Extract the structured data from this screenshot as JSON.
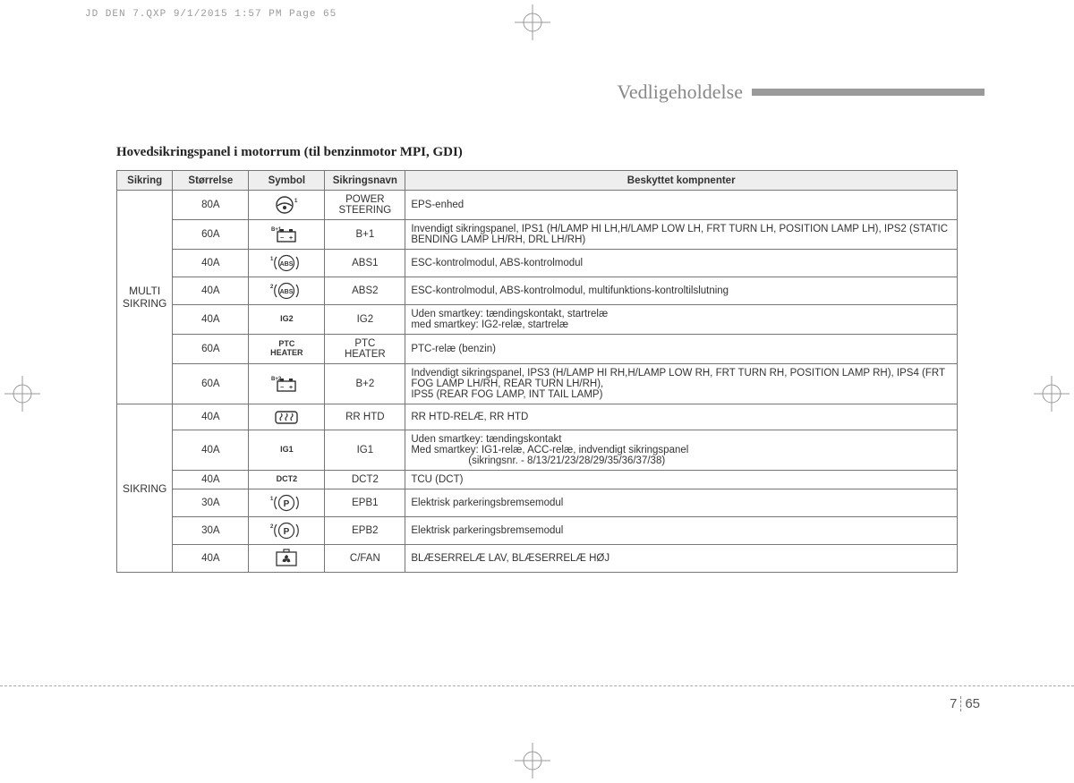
{
  "print_header": "JD DEN 7.QXP  9/1/2015  1:57 PM  Page 65",
  "section_title": "Vedligeholdelse",
  "table_title": "Hovedsikringspanel i motorrum (til benzinmotor MPI, GDI)",
  "columns": {
    "c0": "Sikring",
    "c1": "Størrelse",
    "c2": "Symbol",
    "c3": "Sikringsnavn",
    "c4": "Beskyttet kompnenter"
  },
  "groups": [
    {
      "label": "MULTI\nSIKRING",
      "rows": 7
    },
    {
      "label": "SIKRING",
      "rows": 6
    }
  ],
  "rows": [
    {
      "size": "80A",
      "symbol": "steering",
      "sym_text": "",
      "sup": "1",
      "name": "POWER\nSTEERING",
      "desc": "EPS-enhed"
    },
    {
      "size": "60A",
      "symbol": "battery",
      "sym_text": "",
      "sup": "B+1",
      "name": "B+1",
      "desc": "Invendigt sikringspanel, IPS1 (H/LAMP HI LH,H/LAMP LOW LH, FRT TURN LH, POSITION LAMP LH), IPS2 (STATIC BENDING LAMP LH/RH, DRL LH/RH)"
    },
    {
      "size": "40A",
      "symbol": "abs",
      "sym_text": "ABS",
      "sup": "1",
      "name": "ABS1",
      "desc": "ESC-kontrolmodul, ABS-kontrolmodul"
    },
    {
      "size": "40A",
      "symbol": "abs",
      "sym_text": "ABS",
      "sup": "2",
      "name": "ABS2",
      "desc": "ESC-kontrolmodul, ABS-kontrolmodul, multifunktions-kontroltilslutning"
    },
    {
      "size": "40A",
      "symbol": "text",
      "sym_text": "IG2",
      "sup": "",
      "name": "IG2",
      "desc": "Uden smartkey: tændingskontakt, startrelæ\nmed smartkey: IG2-relæ, startrelæ"
    },
    {
      "size": "60A",
      "symbol": "text",
      "sym_text": "PTC\nHEATER",
      "sup": "",
      "name": "PTC\nHEATER",
      "desc": "PTC-relæ (benzin)"
    },
    {
      "size": "60A",
      "symbol": "battery",
      "sym_text": "",
      "sup": "B+2",
      "name": "B+2",
      "desc": "Indvendigt sikringspanel, IPS3 (H/LAMP HI RH,H/LAMP LOW RH, FRT TURN RH, POSITION LAMP RH), IPS4 (FRT FOG LAMP LH/RH, REAR TURN LH/RH),\nIPS5 (REAR FOG LAMP, INT TAIL LAMP)"
    },
    {
      "size": "40A",
      "symbol": "defog",
      "sym_text": "",
      "sup": "",
      "name": "RR HTD",
      "desc": "RR HTD-RELÆ, RR HTD"
    },
    {
      "size": "40A",
      "symbol": "text",
      "sym_text": "IG1",
      "sup": "",
      "name": "IG1",
      "desc": "Uden smartkey: tændingskontakt\nMed smartkey: IG1-relæ, ACC-relæ, indvendigt sikringspanel\n                    (sikringsnr. - 8/13/21/23/28/29/35/36/37/38)"
    },
    {
      "size": "40A",
      "symbol": "text",
      "sym_text": "DCT2",
      "sup": "",
      "name": "DCT2",
      "desc": "TCU (DCT)"
    },
    {
      "size": "30A",
      "symbol": "park",
      "sym_text": "P",
      "sup": "1",
      "name": "EPB1",
      "desc": "Elektrisk parkeringsbremsemodul"
    },
    {
      "size": "30A",
      "symbol": "park",
      "sym_text": "P",
      "sup": "2",
      "name": "EPB2",
      "desc": "Elektrisk parkeringsbremsemodul"
    },
    {
      "size": "40A",
      "symbol": "fan",
      "sym_text": "",
      "sup": "",
      "name": "C/FAN",
      "desc": "BLÆSERRELÆ LAV, BLÆSERRELÆ HØJ"
    }
  ],
  "page": {
    "chapter": "7",
    "num": "65"
  }
}
